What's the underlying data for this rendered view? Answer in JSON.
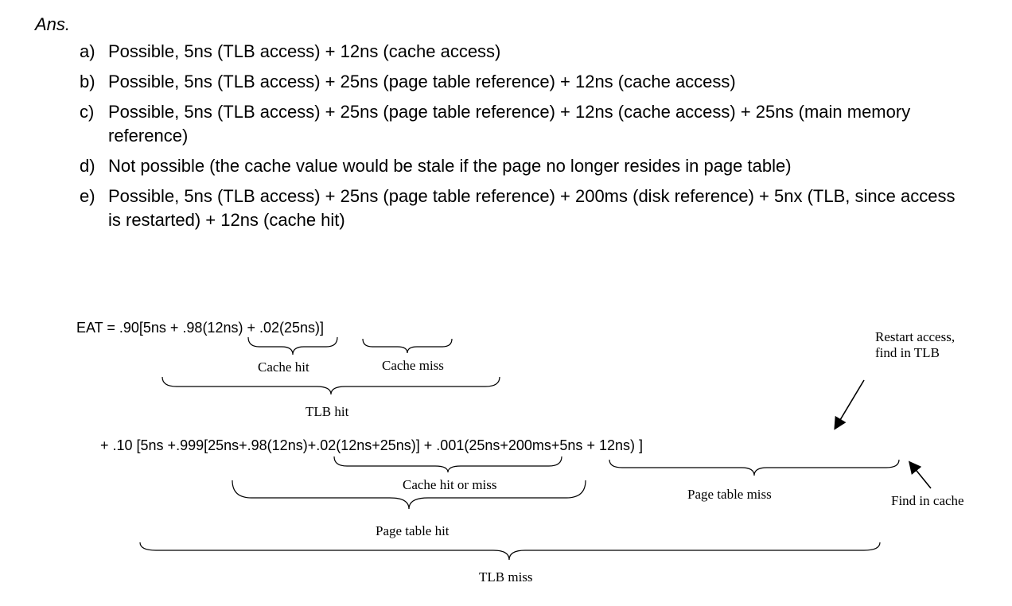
{
  "heading": "Ans.",
  "answers": [
    {
      "marker": "a)",
      "text": "Possible, 5ns (TLB access) + 12ns (cache access)"
    },
    {
      "marker": "b)",
      "text": "Possible, 5ns (TLB access) + 25ns (page table reference) + 12ns (cache access)"
    },
    {
      "marker": "c)",
      "text": "Possible, 5ns (TLB access) + 25ns (page table reference) + 12ns (cache access) + 25ns (main memory reference)"
    },
    {
      "marker": "d)",
      "text": "Not possible (the cache value would be stale if the page no longer resides in page table)"
    },
    {
      "marker": "e)",
      "text": "Possible, 5ns (TLB access) + 25ns (page table reference) + 200ms (disk reference) + 5nx (TLB, since access is restarted) + 12ns (cache hit)"
    }
  ],
  "diagram": {
    "eq1": "EAT =  .90[5ns + .98(12ns) + .02(25ns)]",
    "eq2": "+ .10 [5ns +.999[25ns+.98(12ns)+.02(12ns+25ns)] + .001(25ns+200ms+5ns + 12ns) ]",
    "labels": {
      "cache_hit": "Cache hit",
      "cache_miss": "Cache miss",
      "tlb_hit": "TLB hit",
      "restart_line1": "Restart access,",
      "restart_line2": "find in TLB",
      "cache_hit_or_miss": "Cache hit or miss",
      "page_table_miss": "Page table miss",
      "find_in_cache": "Find in cache",
      "page_table_hit": "Page table hit",
      "tlb_miss": "TLB miss"
    }
  }
}
